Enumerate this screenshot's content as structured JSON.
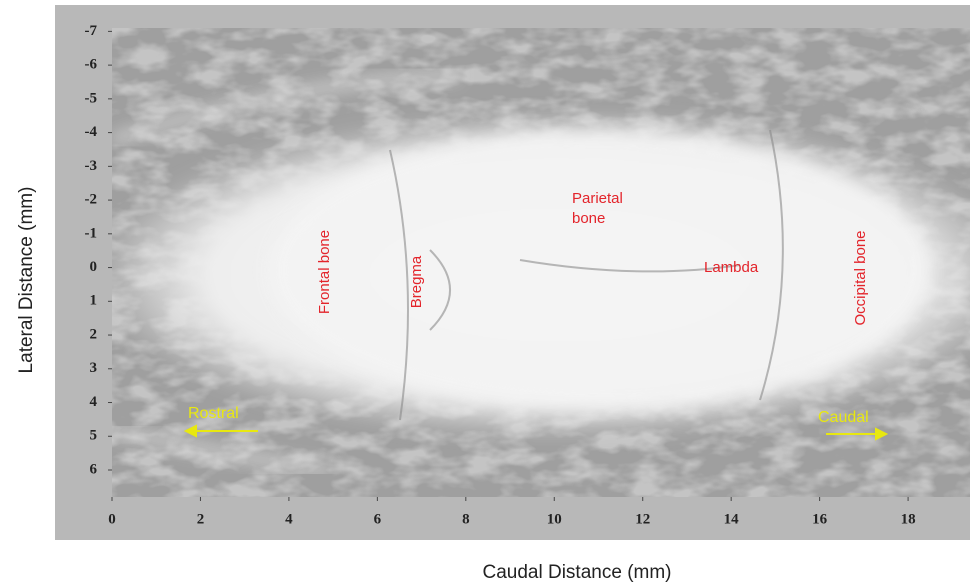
{
  "chart_data": {
    "type": "image",
    "xlabel": "Caudal Distance (mm)",
    "ylabel": "Lateral Distance (mm)",
    "xlim": [
      0,
      19.4
    ],
    "xticks": [
      0,
      2,
      4,
      6,
      8,
      10,
      12,
      14,
      16,
      18
    ],
    "ylim": [
      -7.1,
      6.8
    ],
    "yticks": [
      -7,
      -6,
      -5,
      -4,
      -3,
      -2,
      -1,
      0,
      1,
      2,
      3,
      4,
      5,
      6
    ],
    "annotations": [
      "Frontal bone",
      "Bregma",
      "Parietal",
      "bone",
      "Lambda",
      "Occipital bone",
      "Rostral",
      "Caudal"
    ]
  }
}
